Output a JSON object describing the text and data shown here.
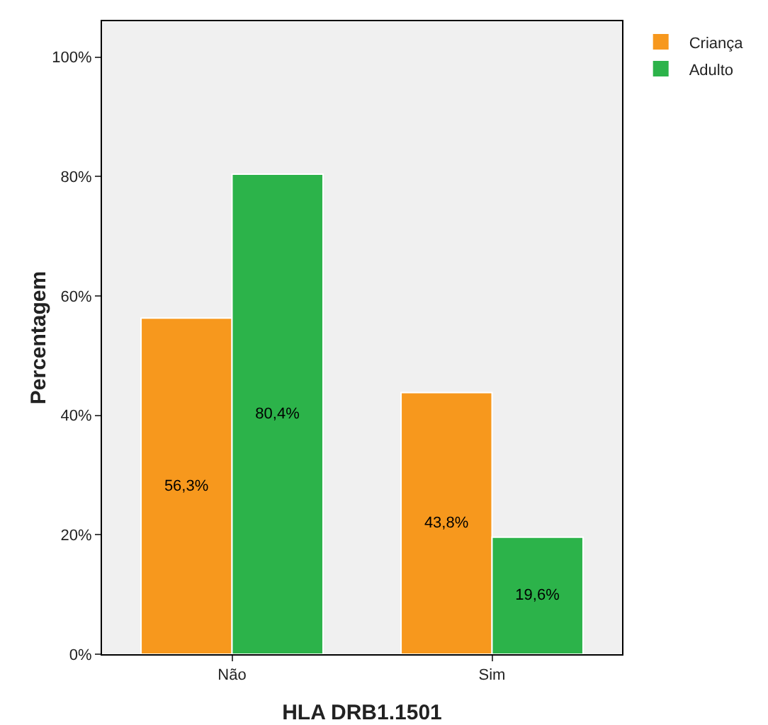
{
  "chart_data": {
    "type": "bar",
    "xlabel": "HLA DRB1.1501",
    "ylabel": "Percentagem",
    "categories": [
      "Não",
      "Sim"
    ],
    "series": [
      {
        "name": "Criança",
        "color": "#f7981d",
        "values": [
          56.3,
          43.8
        ],
        "value_labels": [
          "56,3%",
          "43,8%"
        ]
      },
      {
        "name": "Adulto",
        "color": "#2cb34a",
        "values": [
          80.4,
          19.6
        ],
        "value_labels": [
          "80,4%",
          "19,6%"
        ]
      }
    ],
    "ylim": [
      0,
      106
    ],
    "yticks": [
      {
        "value": 0,
        "label": "0%"
      },
      {
        "value": 20,
        "label": "20%"
      },
      {
        "value": 40,
        "label": "40%"
      },
      {
        "value": 60,
        "label": "60%"
      },
      {
        "value": 80,
        "label": "80%"
      },
      {
        "value": 100,
        "label": "100%"
      }
    ],
    "grid": false,
    "legend": "top right"
  }
}
